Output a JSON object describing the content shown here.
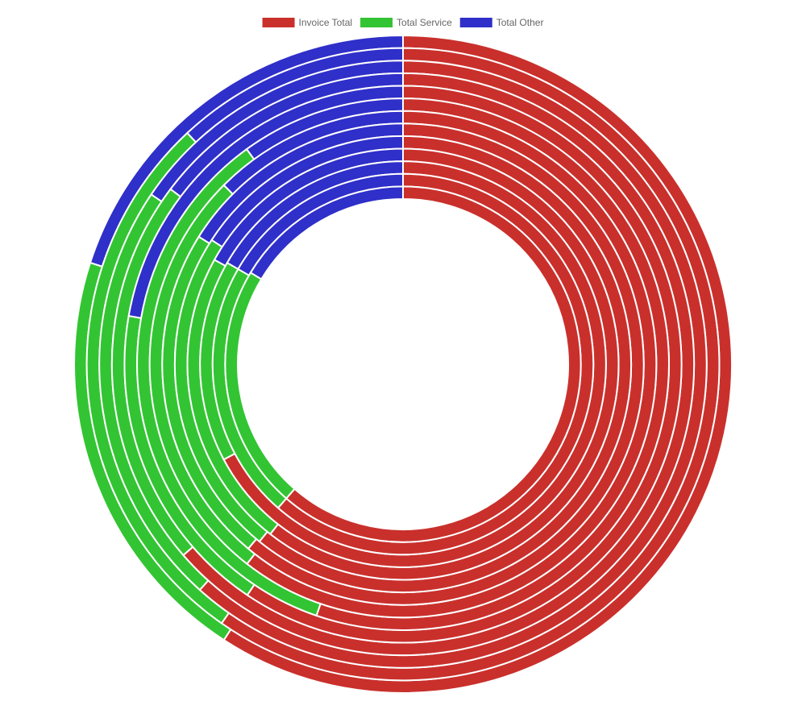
{
  "chart_data": {
    "type": "doughnut",
    "categories": [
      "Invoice Total",
      "Total Service",
      "Total Other"
    ],
    "colors": [
      "#c9302c",
      "#33c433",
      "#2f2fc9"
    ],
    "series": [
      {
        "values": [
          213,
          75,
          72
        ]
      },
      {
        "values": [
          215,
          102,
          43
        ]
      },
      {
        "values": [
          222,
          82,
          56
        ]
      },
      {
        "values": [
          229,
          78,
          53
        ]
      },
      {
        "values": [
          214,
          66,
          80
        ]
      },
      {
        "values": [
          199,
          125,
          36
        ]
      },
      {
        "values": [
          218,
          97,
          45
        ]
      },
      {
        "values": [
          220,
          82,
          58
        ]
      },
      {
        "values": [
          219,
          84,
          57
        ]
      },
      {
        "values": [
          218,
          81,
          61
        ]
      },
      {
        "values": [
          242,
          58,
          60
        ]
      },
      {
        "values": [
          221,
          79,
          60
        ]
      },
      {
        "values": [
          221,
          80,
          59
        ]
      }
    ]
  }
}
